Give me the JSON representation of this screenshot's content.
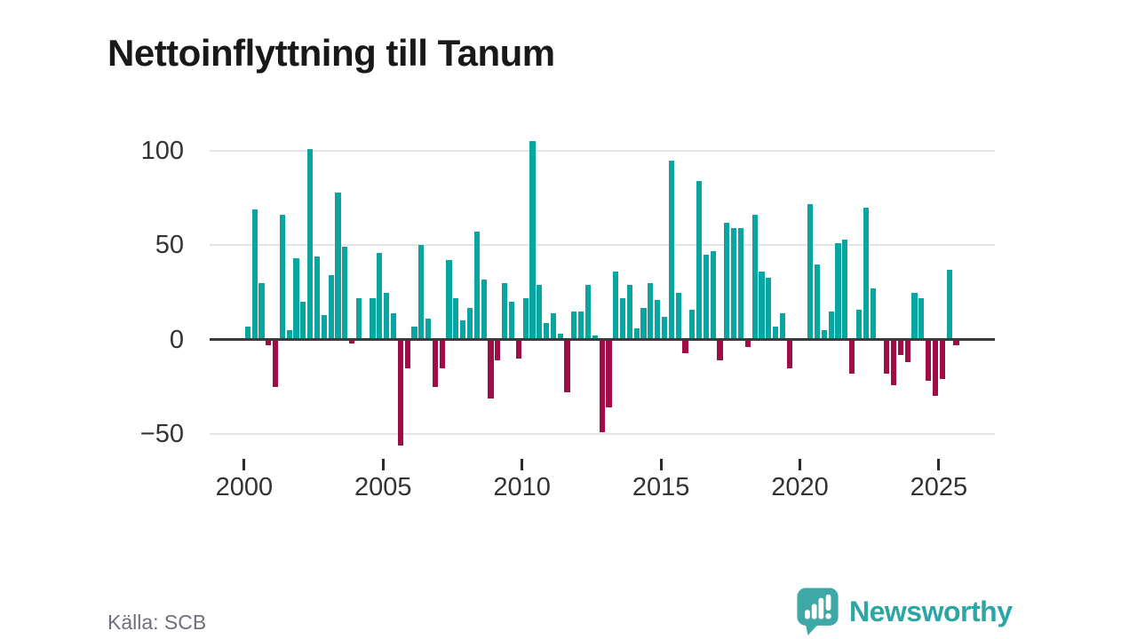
{
  "title": "Nettoinflyttning till Tanum",
  "source": "Källa: SCB",
  "branding": {
    "name": "Newsworthy"
  },
  "colors": {
    "positive": "#0aa5a1",
    "negative": "#a00d46",
    "grid": "#e4e4e4",
    "axis": "#3a3a3a",
    "tick_text": "#333333",
    "title_text": "#191919",
    "source_text": "#6f6f7a",
    "brand": "#2ba6a4"
  },
  "chart_data": {
    "type": "bar",
    "title": "Nettoinflyttning till Tanum",
    "frequency": "quarterly",
    "start": "2000-Q1",
    "end": "2025-Q3",
    "xlabel": "",
    "ylabel": "",
    "ylim": [
      -57,
      114
    ],
    "y_ticks": [
      -50,
      0,
      50,
      100
    ],
    "x_ticks": [
      2000,
      2005,
      2010,
      2015,
      2020,
      2025
    ],
    "grid": "horizontal-only",
    "legend": "none",
    "values": [
      7,
      69,
      30,
      -3,
      -25,
      66,
      5,
      43,
      20,
      101,
      44,
      13,
      34,
      78,
      49,
      -2,
      22,
      0,
      22,
      46,
      25,
      14,
      -56,
      -15,
      7,
      50,
      11,
      -25,
      -15,
      42,
      22,
      10,
      17,
      57,
      32,
      -31,
      -11,
      30,
      20,
      -10,
      22,
      105,
      29,
      9,
      14,
      3,
      -28,
      15,
      15,
      29,
      2,
      -49,
      -36,
      36,
      22,
      29,
      6,
      17,
      30,
      21,
      12,
      95,
      25,
      -7,
      16,
      84,
      45,
      47,
      -11,
      62,
      59,
      59,
      -4,
      66,
      36,
      33,
      7,
      14,
      -15,
      0,
      0,
      72,
      40,
      5,
      15,
      51,
      53,
      -18,
      16,
      70,
      27,
      0,
      -18,
      -24,
      -8,
      -12,
      25,
      22,
      -22,
      -30,
      -21,
      37,
      -3
    ]
  }
}
